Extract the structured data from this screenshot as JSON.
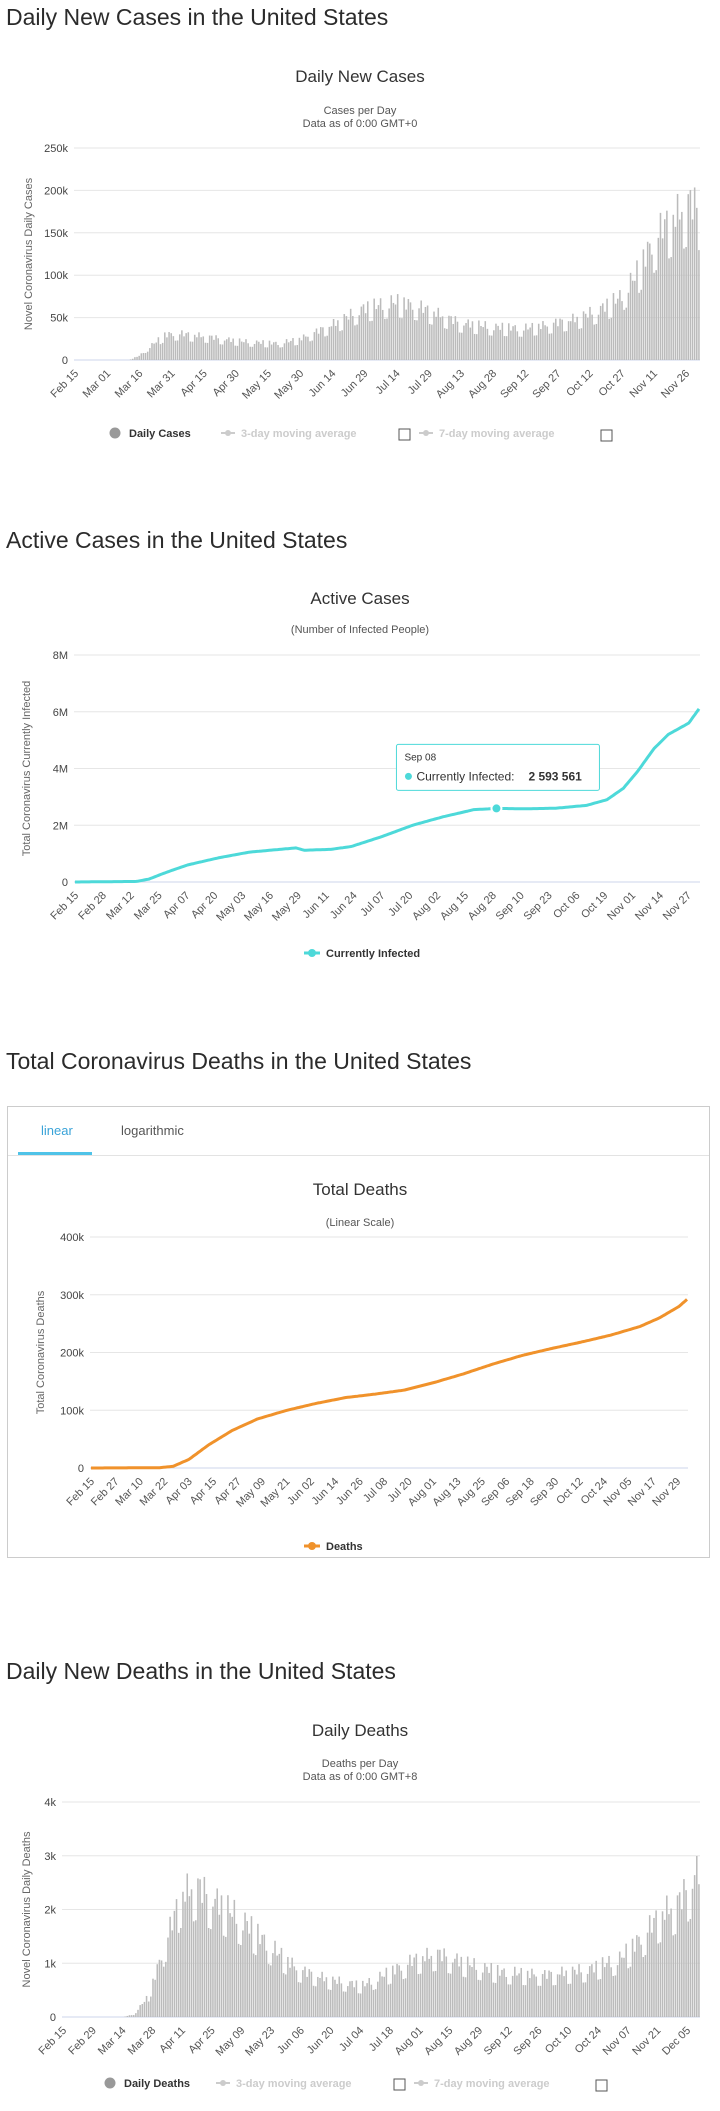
{
  "sections": {
    "daily_cases_title": "Daily New Cases in the United States",
    "active_cases_title": "Active Cases in the United States",
    "total_deaths_title": "Total Coronavirus Deaths in the United States",
    "daily_deaths_title": "Daily New Deaths in the United States"
  },
  "deaths_tabs": {
    "linear": "linear",
    "logarithmic": "logarithmic"
  },
  "colors": {
    "bars": "#bbbbbb",
    "active": "#4dd9d9",
    "deaths": "#f0922b",
    "grid": "#e6e6e6",
    "tab_accent": "#4fc3e8"
  },
  "chart_data": [
    {
      "id": "daily_cases",
      "type": "bar",
      "title": "Daily New Cases",
      "subtitle": [
        "Cases per Day",
        "Data as of 0:00 GMT+0"
      ],
      "ylabel": "Novel Coronavirus Daily Cases",
      "ylim": [
        0,
        250000
      ],
      "yticks": [
        "0",
        "50k",
        "100k",
        "150k",
        "200k",
        "250k"
      ],
      "xticks": [
        "Feb 15",
        "Mar 01",
        "Mar 16",
        "Mar 31",
        "Apr 15",
        "Apr 30",
        "May 15",
        "May 30",
        "Jun 14",
        "Jun 29",
        "Jul 14",
        "Jul 29",
        "Aug 13",
        "Aug 28",
        "Sep 12",
        "Sep 27",
        "Oct 12",
        "Oct 27",
        "Nov 11",
        "Nov 26"
      ],
      "legend": [
        "Daily Cases",
        "3-day moving average",
        "7-day moving average"
      ],
      "keypoints": [
        [
          0,
          0
        ],
        [
          25,
          0
        ],
        [
          30,
          5000
        ],
        [
          36,
          18000
        ],
        [
          42,
          30000
        ],
        [
          48,
          32000
        ],
        [
          55,
          30000
        ],
        [
          62,
          28000
        ],
        [
          70,
          25000
        ],
        [
          80,
          22000
        ],
        [
          95,
          20000
        ],
        [
          105,
          25000
        ],
        [
          120,
          42000
        ],
        [
          135,
          62000
        ],
        [
          150,
          70000
        ],
        [
          160,
          65000
        ],
        [
          170,
          55000
        ],
        [
          180,
          45000
        ],
        [
          195,
          40000
        ],
        [
          210,
          38000
        ],
        [
          220,
          42000
        ],
        [
          235,
          50000
        ],
        [
          245,
          60000
        ],
        [
          255,
          75000
        ],
        [
          262,
          100000
        ],
        [
          268,
          130000
        ],
        [
          275,
          160000
        ],
        [
          282,
          175000
        ],
        [
          288,
          190000
        ],
        [
          292,
          180000
        ]
      ]
    },
    {
      "id": "active_cases",
      "type": "line",
      "title": "Active Cases",
      "subtitle": [
        "(Number of Infected People)"
      ],
      "ylabel": "Total Coronavirus Currently Infected",
      "ylim": [
        0,
        8000000
      ],
      "yticks": [
        "0",
        "2M",
        "4M",
        "6M",
        "8M"
      ],
      "xticks": [
        "Feb 15",
        "Feb 28",
        "Mar 12",
        "Mar 25",
        "Apr 07",
        "Apr 20",
        "May 03",
        "May 16",
        "May 29",
        "Jun 11",
        "Jun 24",
        "Jul 07",
        "Jul 20",
        "Aug 02",
        "Aug 15",
        "Aug 28",
        "Sep 10",
        "Sep 23",
        "Oct 06",
        "Oct 19",
        "Nov 01",
        "Nov 14",
        "Nov 27"
      ],
      "legend": [
        "Currently Infected"
      ],
      "tooltip": {
        "date": "Sep 08",
        "label": "Currently Infected:",
        "value": "2 593 561",
        "day": 206
      },
      "keypoints": [
        [
          0,
          0
        ],
        [
          30,
          20000
        ],
        [
          36,
          100000
        ],
        [
          45,
          350000
        ],
        [
          55,
          600000
        ],
        [
          70,
          850000
        ],
        [
          85,
          1050000
        ],
        [
          100,
          1150000
        ],
        [
          108,
          1200000
        ],
        [
          112,
          1120000
        ],
        [
          125,
          1150000
        ],
        [
          135,
          1250000
        ],
        [
          150,
          1600000
        ],
        [
          165,
          2000000
        ],
        [
          180,
          2300000
        ],
        [
          195,
          2550000
        ],
        [
          206,
          2593561
        ],
        [
          220,
          2580000
        ],
        [
          235,
          2600000
        ],
        [
          250,
          2700000
        ],
        [
          260,
          2900000
        ],
        [
          268,
          3300000
        ],
        [
          275,
          3900000
        ],
        [
          283,
          4700000
        ],
        [
          290,
          5200000
        ],
        [
          300,
          5600000
        ],
        [
          305,
          6100000
        ]
      ]
    },
    {
      "id": "total_deaths",
      "type": "line",
      "title": "Total Deaths",
      "subtitle": [
        "(Linear Scale)"
      ],
      "ylabel": "Total Coronavirus Deaths",
      "ylim": [
        0,
        400000
      ],
      "yticks": [
        "0",
        "100k",
        "200k",
        "300k",
        "400k"
      ],
      "xticks": [
        "Feb 15",
        "Feb 27",
        "Mar 10",
        "Mar 22",
        "Apr 03",
        "Apr 15",
        "Apr 27",
        "May 09",
        "May 21",
        "Jun 02",
        "Jun 14",
        "Jun 26",
        "Jul 08",
        "Jul 20",
        "Aug 01",
        "Aug 13",
        "Aug 25",
        "Sep 06",
        "Sep 18",
        "Sep 30",
        "Oct 12",
        "Oct 24",
        "Nov 05",
        "Nov 17",
        "Nov 29"
      ],
      "legend": [
        "Deaths"
      ],
      "keypoints": [
        [
          0,
          0
        ],
        [
          35,
          500
        ],
        [
          42,
          3000
        ],
        [
          50,
          15000
        ],
        [
          60,
          40000
        ],
        [
          72,
          65000
        ],
        [
          85,
          85000
        ],
        [
          100,
          100000
        ],
        [
          115,
          112000
        ],
        [
          130,
          122000
        ],
        [
          145,
          128000
        ],
        [
          160,
          135000
        ],
        [
          175,
          148000
        ],
        [
          190,
          163000
        ],
        [
          205,
          180000
        ],
        [
          220,
          195000
        ],
        [
          235,
          207000
        ],
        [
          250,
          218000
        ],
        [
          265,
          230000
        ],
        [
          280,
          245000
        ],
        [
          290,
          260000
        ],
        [
          300,
          280000
        ],
        [
          304,
          292000
        ]
      ]
    },
    {
      "id": "daily_deaths",
      "type": "bar",
      "title": "Daily Deaths",
      "subtitle": [
        "Deaths per Day",
        "Data as of 0:00 GMT+8"
      ],
      "ylabel": "Novel Coronavirus Daily Deaths",
      "ylim": [
        0,
        4000
      ],
      "yticks": [
        "0",
        "1k",
        "2k",
        "3k",
        "4k"
      ],
      "xticks": [
        "Feb 15",
        "Feb 29",
        "Mar 14",
        "Mar 28",
        "Apr 11",
        "Apr 25",
        "May 09",
        "May 23",
        "Jun 06",
        "Jun 20",
        "Jul 04",
        "Jul 18",
        "Aug 01",
        "Aug 15",
        "Aug 29",
        "Sep 12",
        "Sep 26",
        "Oct 10",
        "Oct 24",
        "Nov 07",
        "Nov 21",
        "Dec 05"
      ],
      "legend": [
        "Daily Deaths",
        "3-day moving average",
        "7-day moving average"
      ],
      "keypoints": [
        [
          0,
          0
        ],
        [
          28,
          0
        ],
        [
          33,
          50
        ],
        [
          40,
          400
        ],
        [
          47,
          1300
        ],
        [
          55,
          2300
        ],
        [
          62,
          2500
        ],
        [
          68,
          2300
        ],
        [
          75,
          2100
        ],
        [
          85,
          1800
        ],
        [
          95,
          1400
        ],
        [
          110,
          900
        ],
        [
          125,
          700
        ],
        [
          140,
          600
        ],
        [
          150,
          800
        ],
        [
          165,
          1100
        ],
        [
          175,
          1200
        ],
        [
          190,
          1000
        ],
        [
          205,
          850
        ],
        [
          225,
          800
        ],
        [
          245,
          900
        ],
        [
          260,
          1100
        ],
        [
          270,
          1500
        ],
        [
          278,
          1900
        ],
        [
          288,
          2200
        ],
        [
          294,
          2600
        ],
        [
          297,
          2800
        ]
      ]
    }
  ]
}
